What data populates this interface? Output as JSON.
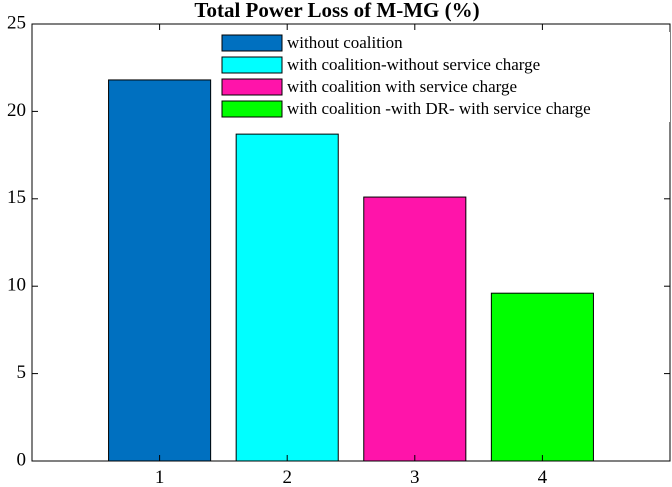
{
  "chart_data": {
    "type": "bar",
    "title": "Total Power Loss of M-MG (%)",
    "xlabel": "",
    "ylabel": "",
    "categories": [
      "1",
      "2",
      "3",
      "4"
    ],
    "values": [
      21.8,
      18.7,
      15.1,
      9.6
    ],
    "colors": [
      "#0070c0",
      "#00ffff",
      "#ff14aa",
      "#00ff00"
    ],
    "legend": [
      "without coalition",
      "with coalition-without service charge",
      "with coalition with service charge",
      "with coalition -with DR- with service charge"
    ],
    "legend_position": "top-right",
    "ylim": [
      0,
      25
    ],
    "yticks": [
      0,
      5,
      10,
      15,
      20,
      25
    ],
    "xlim": [
      0,
      5
    ],
    "grid": false
  }
}
